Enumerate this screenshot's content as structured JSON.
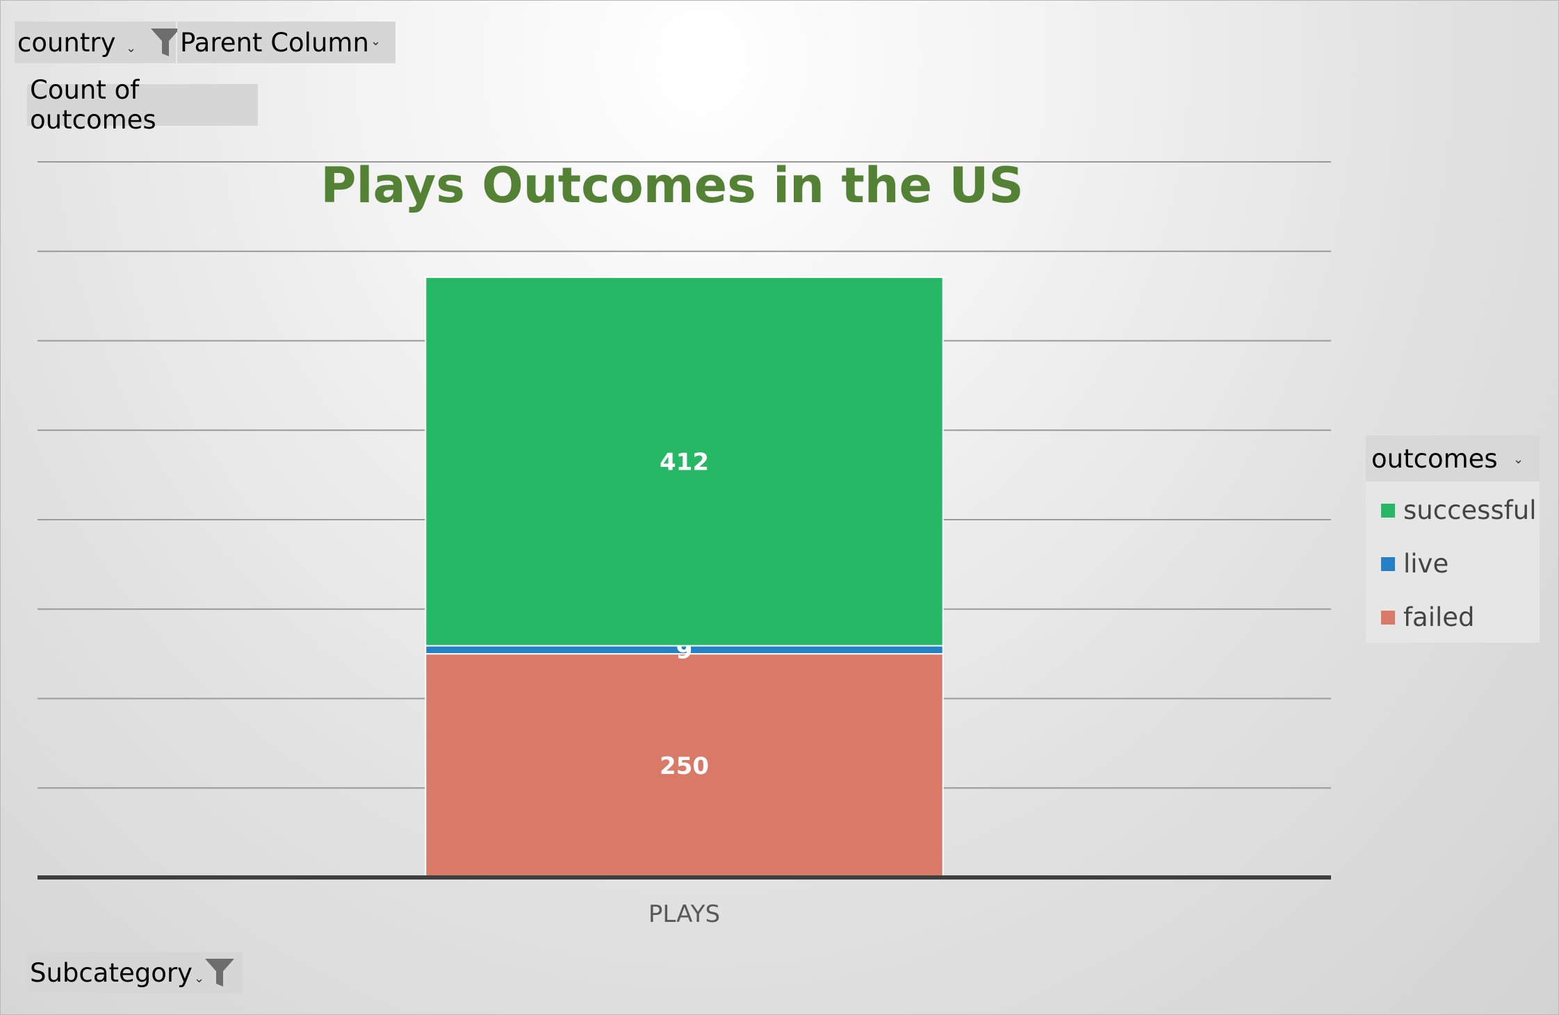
{
  "filters": {
    "country_label": "country",
    "parent_column_label": "Parent Column",
    "values_label": "Count of outcomes",
    "subcategory_label": "Subcategory"
  },
  "legend": {
    "title": "outcomes",
    "items": [
      {
        "label": "successful",
        "color": "#27b866"
      },
      {
        "label": "live",
        "color": "#2680c6"
      },
      {
        "label": "failed",
        "color": "#d97a68"
      }
    ]
  },
  "chart_data": {
    "type": "bar",
    "stacked": true,
    "title": "Plays Outcomes in the US",
    "title_color": "#548235",
    "categories": [
      "PLAYS"
    ],
    "series": [
      {
        "name": "failed",
        "values": [
          250
        ],
        "color": "#d97a68"
      },
      {
        "name": "live",
        "values": [
          9
        ],
        "color": "#2680c6"
      },
      {
        "name": "successful",
        "values": [
          412
        ],
        "color": "#27b866"
      }
    ],
    "ylim": [
      0,
      800
    ],
    "grid": true,
    "legend_position": "right"
  }
}
